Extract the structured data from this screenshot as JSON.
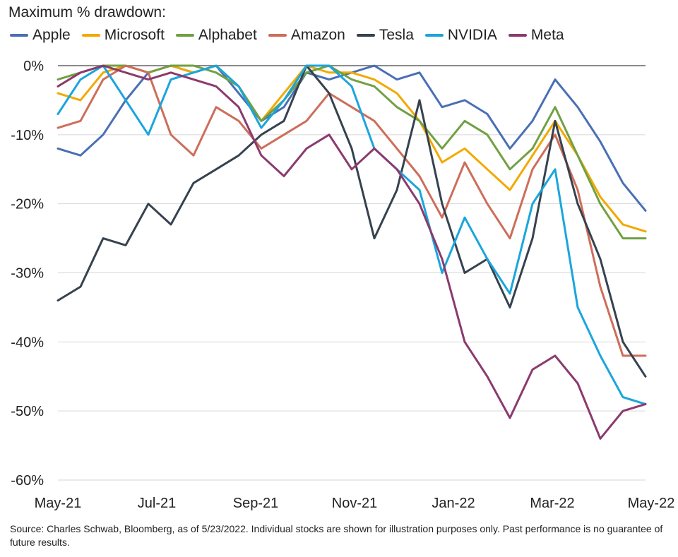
{
  "chart_data": {
    "type": "line",
    "title": "Maximum % drawdown:",
    "xlabel": "",
    "ylabel": "",
    "ylim": [
      -60,
      0
    ],
    "yticks": [
      0,
      -10,
      -20,
      -30,
      -40,
      -50,
      -60
    ],
    "ytick_labels": [
      "0%",
      "-10%",
      "-20%",
      "-30%",
      "-40%",
      "-50%",
      "-60%"
    ],
    "xticks": [
      "May-21",
      "Jul-21",
      "Sep-21",
      "Nov-21",
      "Jan-22",
      "Mar-22",
      "May-22"
    ],
    "xlim": [
      "2021-05-24",
      "2022-05-23"
    ],
    "grid": "horizontal",
    "legend": "top",
    "series": [
      {
        "name": "Apple",
        "color": "#4a6fb5",
        "x": [
          "2021-05-24",
          "2021-06-07",
          "2021-06-21",
          "2021-07-05",
          "2021-07-19",
          "2021-08-02",
          "2021-08-16",
          "2021-08-30",
          "2021-09-13",
          "2021-09-27",
          "2021-10-11",
          "2021-10-25",
          "2021-11-08",
          "2021-11-22",
          "2021-12-06",
          "2021-12-20",
          "2022-01-03",
          "2022-01-17",
          "2022-01-31",
          "2022-02-14",
          "2022-02-28",
          "2022-03-14",
          "2022-03-28",
          "2022-04-11",
          "2022-04-25",
          "2022-05-09",
          "2022-05-23"
        ],
        "y": [
          -12,
          -13,
          -10,
          -5,
          -1,
          0,
          -1,
          0,
          -4,
          -8,
          -6,
          -1,
          -2,
          -1,
          0,
          -2,
          -1,
          -6,
          -5,
          -7,
          -12,
          -8,
          -2,
          -6,
          -11,
          -17,
          -21
        ]
      },
      {
        "name": "Microsoft",
        "color": "#f2a900",
        "x": [
          "2021-05-24",
          "2021-06-07",
          "2021-06-21",
          "2021-07-05",
          "2021-07-19",
          "2021-08-02",
          "2021-08-16",
          "2021-08-30",
          "2021-09-13",
          "2021-09-27",
          "2021-10-11",
          "2021-10-25",
          "2021-11-08",
          "2021-11-22",
          "2021-12-06",
          "2021-12-20",
          "2022-01-03",
          "2022-01-17",
          "2022-01-31",
          "2022-02-14",
          "2022-02-28",
          "2022-03-14",
          "2022-03-28",
          "2022-04-11",
          "2022-04-25",
          "2022-05-09",
          "2022-05-23"
        ],
        "y": [
          -4,
          -5,
          -1,
          0,
          -1,
          0,
          -1,
          0,
          -3,
          -8,
          -4,
          0,
          -1,
          -1,
          -2,
          -4,
          -8,
          -14,
          -12,
          -15,
          -18,
          -13,
          -8,
          -13,
          -19,
          -23,
          -24
        ]
      },
      {
        "name": "Alphabet",
        "color": "#71a044",
        "x": [
          "2021-05-24",
          "2021-06-07",
          "2021-06-21",
          "2021-07-05",
          "2021-07-19",
          "2021-08-02",
          "2021-08-16",
          "2021-08-30",
          "2021-09-13",
          "2021-09-27",
          "2021-10-11",
          "2021-10-25",
          "2021-11-08",
          "2021-11-22",
          "2021-12-06",
          "2021-12-20",
          "2022-01-03",
          "2022-01-17",
          "2022-01-31",
          "2022-02-14",
          "2022-02-28",
          "2022-03-14",
          "2022-03-28",
          "2022-04-11",
          "2022-04-25",
          "2022-05-09",
          "2022-05-23"
        ],
        "y": [
          -2,
          -1,
          0,
          0,
          -1,
          0,
          0,
          -1,
          -3,
          -8,
          -5,
          -1,
          0,
          -2,
          -3,
          -6,
          -8,
          -12,
          -8,
          -10,
          -15,
          -12,
          -6,
          -13,
          -20,
          -25,
          -25
        ]
      },
      {
        "name": "Amazon",
        "color": "#cd6e5a",
        "x": [
          "2021-05-24",
          "2021-06-07",
          "2021-06-21",
          "2021-07-05",
          "2021-07-19",
          "2021-08-02",
          "2021-08-16",
          "2021-08-30",
          "2021-09-13",
          "2021-09-27",
          "2021-10-11",
          "2021-10-25",
          "2021-11-08",
          "2021-11-22",
          "2021-12-06",
          "2021-12-20",
          "2022-01-03",
          "2022-01-17",
          "2022-01-31",
          "2022-02-14",
          "2022-02-28",
          "2022-03-14",
          "2022-03-28",
          "2022-04-11",
          "2022-04-25",
          "2022-05-09",
          "2022-05-23"
        ],
        "y": [
          -9,
          -8,
          -2,
          0,
          -1,
          -10,
          -13,
          -6,
          -8,
          -12,
          -10,
          -8,
          -4,
          -6,
          -8,
          -12,
          -16,
          -22,
          -14,
          -20,
          -25,
          -15,
          -10,
          -18,
          -32,
          -42,
          -42
        ]
      },
      {
        "name": "Tesla",
        "color": "#36424f",
        "x": [
          "2021-05-24",
          "2021-06-07",
          "2021-06-21",
          "2021-07-05",
          "2021-07-19",
          "2021-08-02",
          "2021-08-16",
          "2021-08-30",
          "2021-09-13",
          "2021-09-27",
          "2021-10-11",
          "2021-10-25",
          "2021-11-08",
          "2021-11-22",
          "2021-12-06",
          "2021-12-20",
          "2022-01-03",
          "2022-01-17",
          "2022-01-31",
          "2022-02-14",
          "2022-02-28",
          "2022-03-14",
          "2022-03-28",
          "2022-04-11",
          "2022-04-25",
          "2022-05-09",
          "2022-05-23"
        ],
        "y": [
          -34,
          -32,
          -25,
          -26,
          -20,
          -23,
          -17,
          -15,
          -13,
          -10,
          -8,
          0,
          -4,
          -12,
          -25,
          -18,
          -5,
          -20,
          -30,
          -28,
          -35,
          -25,
          -8,
          -20,
          -28,
          -40,
          -45
        ]
      },
      {
        "name": "NVIDIA",
        "color": "#1aa6dc",
        "x": [
          "2021-05-24",
          "2021-06-07",
          "2021-06-21",
          "2021-07-05",
          "2021-07-19",
          "2021-08-02",
          "2021-08-16",
          "2021-08-30",
          "2021-09-13",
          "2021-09-27",
          "2021-10-11",
          "2021-10-25",
          "2021-11-08",
          "2021-11-22",
          "2021-12-06",
          "2021-12-20",
          "2022-01-03",
          "2022-01-17",
          "2022-01-31",
          "2022-02-14",
          "2022-02-28",
          "2022-03-14",
          "2022-03-28",
          "2022-04-11",
          "2022-04-25",
          "2022-05-09",
          "2022-05-23"
        ],
        "y": [
          -7,
          -2,
          0,
          -5,
          -10,
          -2,
          -1,
          0,
          -3,
          -9,
          -5,
          0,
          0,
          -3,
          -12,
          -15,
          -18,
          -30,
          -22,
          -28,
          -33,
          -20,
          -15,
          -35,
          -42,
          -48,
          -49
        ]
      },
      {
        "name": "Meta",
        "color": "#8b3a6e",
        "x": [
          "2021-05-24",
          "2021-06-07",
          "2021-06-21",
          "2021-07-05",
          "2021-07-19",
          "2021-08-02",
          "2021-08-16",
          "2021-08-30",
          "2021-09-13",
          "2021-09-27",
          "2021-10-11",
          "2021-10-25",
          "2021-11-08",
          "2021-11-22",
          "2021-12-06",
          "2021-12-20",
          "2022-01-03",
          "2022-01-17",
          "2022-01-31",
          "2022-02-14",
          "2022-02-28",
          "2022-03-14",
          "2022-03-28",
          "2022-04-11",
          "2022-04-25",
          "2022-05-09",
          "2022-05-23"
        ],
        "y": [
          -3,
          -1,
          0,
          -1,
          -2,
          -1,
          -2,
          -3,
          -6,
          -13,
          -16,
          -12,
          -10,
          -15,
          -12,
          -15,
          -20,
          -28,
          -40,
          -45,
          -51,
          -44,
          -42,
          -46,
          -54,
          -50,
          -49
        ]
      }
    ]
  },
  "source_note": "Source: Charles Schwab, Bloomberg, as of 5/23/2022. Individual stocks are shown for illustration purposes only. Past performance is no guarantee of future results."
}
